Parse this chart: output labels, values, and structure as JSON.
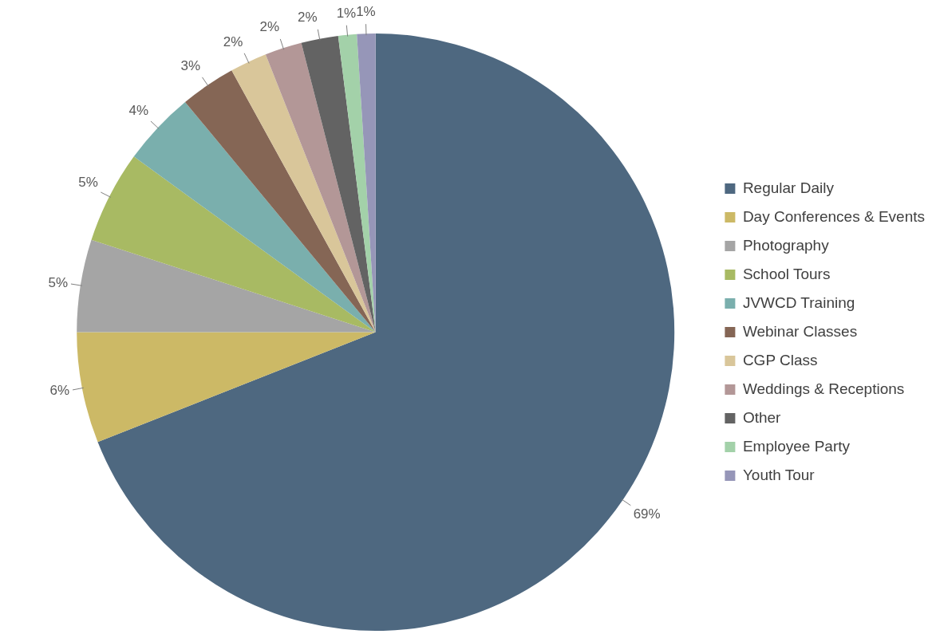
{
  "chart_data": {
    "type": "pie",
    "categories": [
      "Regular Daily",
      "Day Conferences & Events",
      "Photography",
      "School Tours",
      "JVWCD Training",
      "Webinar Classes",
      "CGP Class",
      "Weddings & Receptions",
      "Other",
      "Employee Party",
      "Youth Tour"
    ],
    "values": [
      69,
      6,
      5,
      5,
      4,
      3,
      2,
      2,
      2,
      1,
      1
    ],
    "value_labels": [
      "69%",
      "6%",
      "5%",
      "5%",
      "4%",
      "3%",
      "2%",
      "2%",
      "2%",
      "1%",
      "1%"
    ],
    "colors": [
      "#4e6880",
      "#ccb966",
      "#a5a5a5",
      "#a8ba63",
      "#7aafad",
      "#856655",
      "#d9c69a",
      "#b39797",
      "#636363",
      "#a3d1a9",
      "#9696b8"
    ],
    "legend": "right"
  }
}
